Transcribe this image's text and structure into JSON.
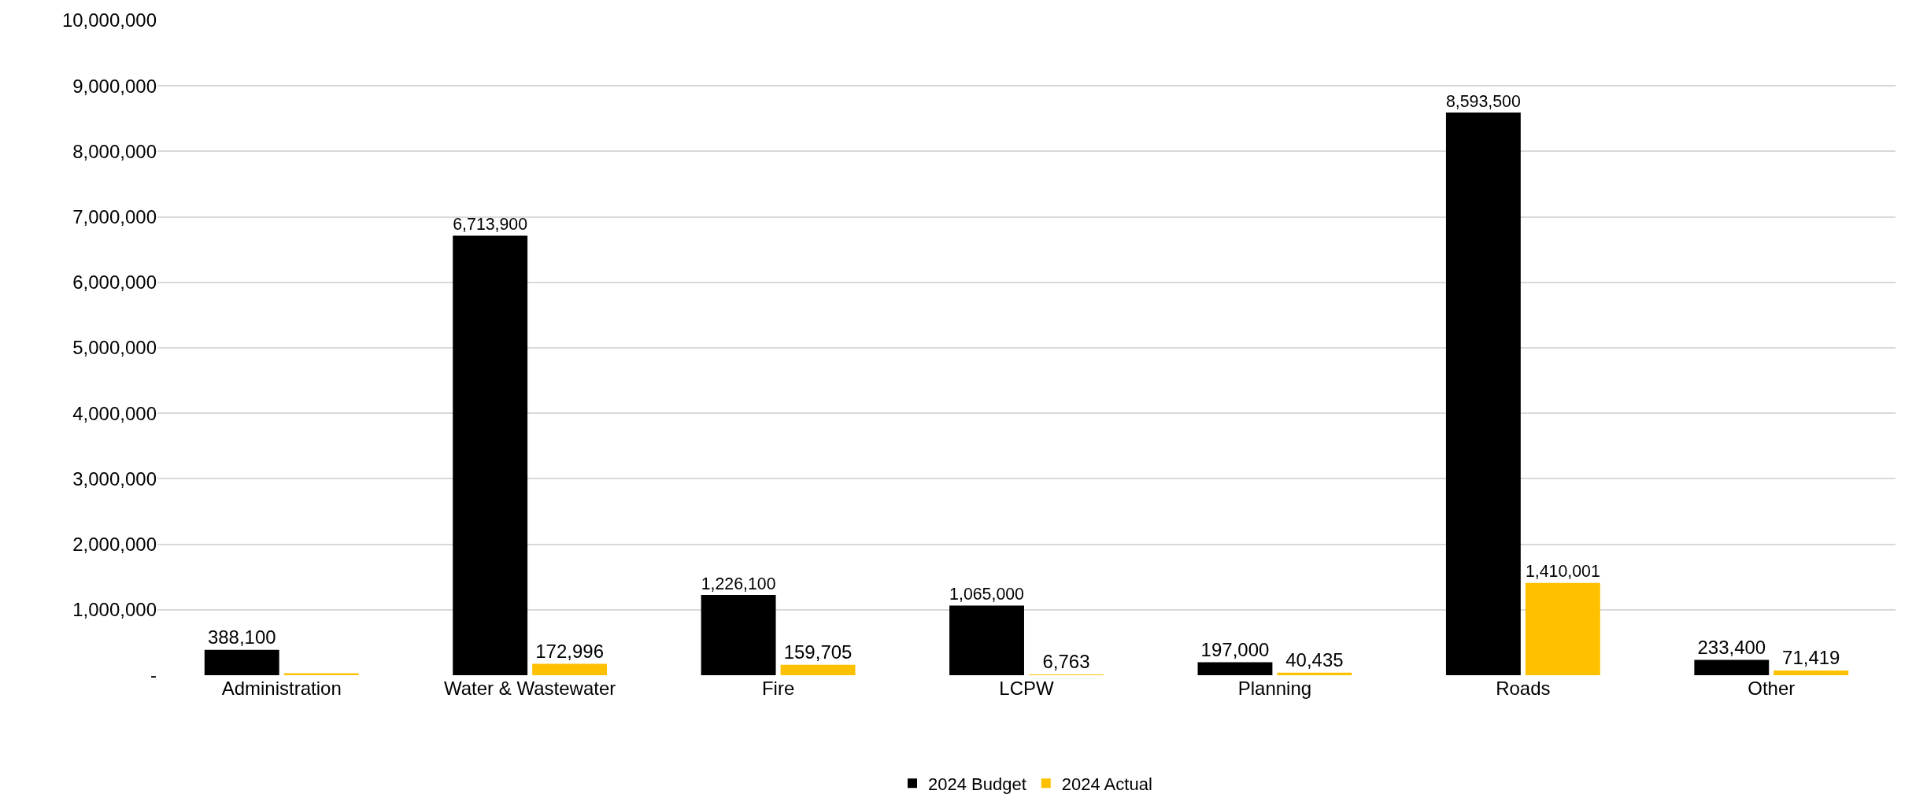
{
  "chart_data": {
    "type": "bar",
    "categories": [
      "Administration",
      "Water & Wastewater",
      "Fire",
      "LCPW",
      "Planning",
      "Roads",
      "Other"
    ],
    "series": [
      {
        "name": "2024 Budget",
        "color": "#000000",
        "values": [
          388100,
          6713900,
          1226100,
          1065000,
          197000,
          8593500,
          233400
        ],
        "value_labels": [
          "388,100",
          "6,713,900",
          "1,226,100",
          "1,065,000",
          "197,000",
          "8,593,500",
          "233,400"
        ]
      },
      {
        "name": "2024 Actual",
        "color": "#ffc000",
        "values": [
          30000,
          172996,
          159705,
          6763,
          40435,
          1410001,
          71419
        ],
        "value_labels": [
          null,
          "172,996",
          "159,705",
          "6,763",
          "40,435",
          "1,410,001",
          "71,419"
        ]
      }
    ],
    "ylim": [
      0,
      10000000
    ],
    "yticks": [
      {
        "value": 0,
        "label": "-"
      },
      {
        "value": 1000000,
        "label": "1,000,000"
      },
      {
        "value": 2000000,
        "label": "2,000,000"
      },
      {
        "value": 3000000,
        "label": "3,000,000"
      },
      {
        "value": 4000000,
        "label": "4,000,000"
      },
      {
        "value": 5000000,
        "label": "5,000,000"
      },
      {
        "value": 6000000,
        "label": "6,000,000"
      },
      {
        "value": 7000000,
        "label": "7,000,000"
      },
      {
        "value": 8000000,
        "label": "8,000,000"
      },
      {
        "value": 9000000,
        "label": "9,000,000"
      },
      {
        "value": 10000000,
        "label": "10,000,000"
      }
    ],
    "grid": "y",
    "legend": "bottom"
  }
}
